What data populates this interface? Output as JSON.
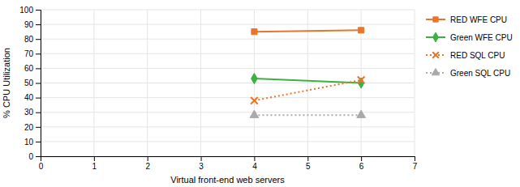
{
  "chart_data": {
    "type": "line",
    "x_label": "Virtual front-end web servers",
    "y_label": "% CPU Utilization",
    "x": [
      4,
      6
    ],
    "series": [
      {
        "name": "RED WFE CPU",
        "color": "#E8752A",
        "values": [
          85,
          86
        ],
        "marker": "square",
        "line_style": "solid"
      },
      {
        "name": "Green WFE CPU",
        "color": "#3CB043",
        "values": [
          53,
          50
        ],
        "marker": "diamond",
        "line_style": "solid"
      },
      {
        "name": "RED SQL CPU",
        "color": "#E8752A",
        "values": [
          38,
          52
        ],
        "marker": "x",
        "line_style": "dotted"
      },
      {
        "name": "Green SQL CPU",
        "color": "#AAAAAA",
        "values": [
          28,
          28
        ],
        "marker": "triangle",
        "line_style": "dotted"
      }
    ],
    "xlim": [
      0,
      7
    ],
    "ylim": [
      0,
      100
    ],
    "xticks": [
      0,
      1,
      2,
      3,
      4,
      5,
      6,
      7
    ],
    "yticks": [
      0,
      10,
      20,
      30,
      40,
      50,
      60,
      70,
      80,
      90,
      100
    ],
    "grid": true,
    "legend": "right"
  }
}
